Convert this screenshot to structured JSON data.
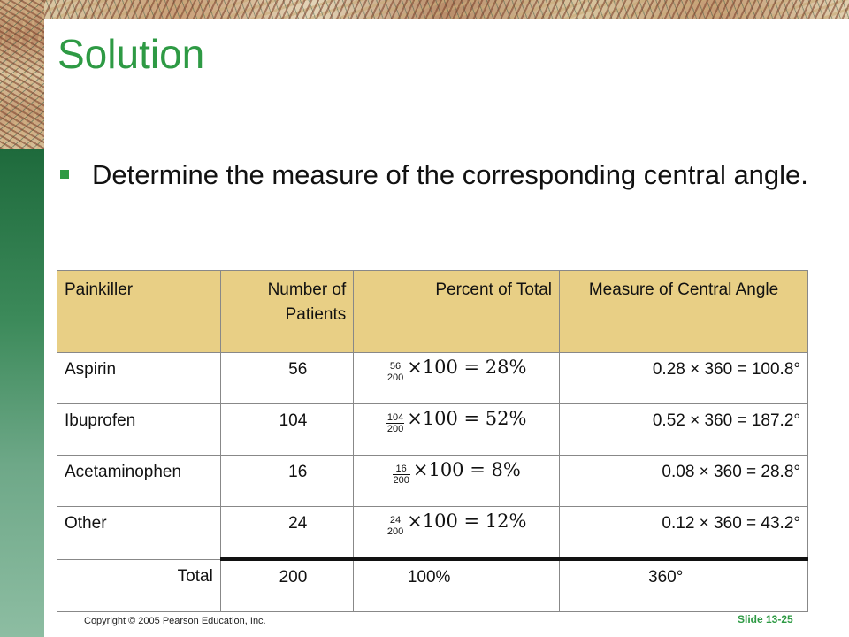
{
  "title": "Solution",
  "bullet": "Determine the measure of the corresponding central angle.",
  "colors": {
    "accent_green": "#2e9a44",
    "header_fill": "#e8cf85"
  },
  "table": {
    "headers": [
      "Painkiller",
      "Number of Patients",
      "Percent of Total",
      "Measure of Central Angle"
    ],
    "rows": [
      {
        "painkiller": "Aspirin",
        "patients": "56",
        "num": "56",
        "den": "200",
        "result": "×100 = 28%",
        "angle": "0.28  × 360 = 100.8°"
      },
      {
        "painkiller": "Ibuprofen",
        "patients": "104",
        "num": "104",
        "den": "200",
        "result": "×100 = 52%",
        "angle": "0.52  × 360 = 187.2°"
      },
      {
        "painkiller": "Acetaminophen",
        "patients": "16",
        "num": "16",
        "den": "200",
        "result": "×100 = 8%",
        "angle": "0.08  × 360 = 28.8°"
      },
      {
        "painkiller": "Other",
        "patients": "24",
        "num": "24",
        "den": "200",
        "result": "×100 = 12%",
        "angle": "0.12  × 360 = 43.2°"
      }
    ],
    "total": {
      "label": "Total",
      "patients": "200",
      "percent": "100%",
      "angle": "360°"
    }
  },
  "footer": {
    "copyright": "Copyright © 2005 Pearson Education, Inc.",
    "slide": "Slide 13-25"
  }
}
